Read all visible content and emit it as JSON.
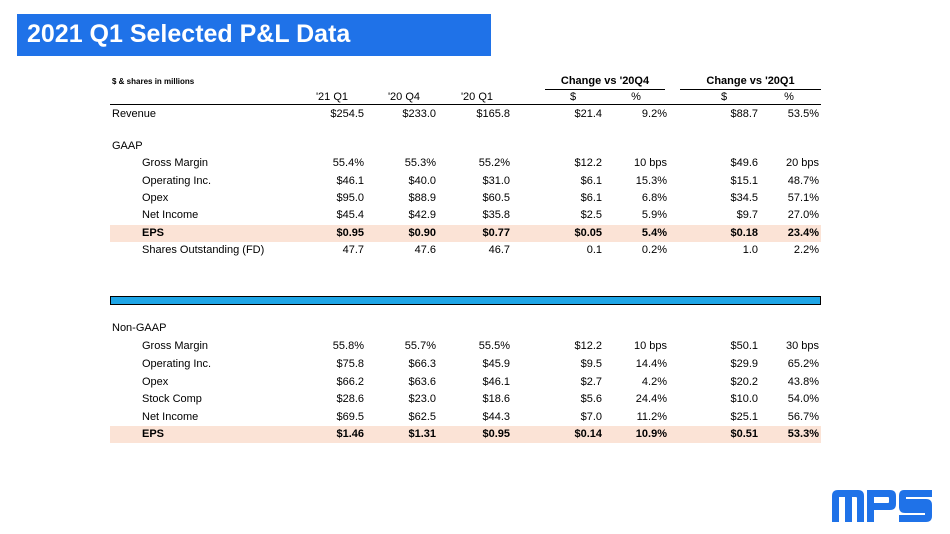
{
  "title": "2021 Q1 Selected P&L Data",
  "units_note": "$ & shares in millions",
  "group_headers": {
    "vs_q4": "Change vs '20Q4",
    "vs_q1": "Change vs '20Q1"
  },
  "columns": [
    "'21 Q1",
    "'20 Q4",
    "'20 Q1",
    "$",
    "%",
    "$",
    "%"
  ],
  "revenue": {
    "label": "Revenue",
    "values": [
      "$254.5",
      "$233.0",
      "$165.8",
      "$21.4",
      "9.2%",
      "$88.7",
      "53.5%"
    ]
  },
  "gaap": {
    "label": "GAAP",
    "rows": [
      {
        "label": "Gross Margin",
        "values": [
          "55.4%",
          "55.3%",
          "55.2%",
          "$12.2",
          "10 bps",
          "$49.6",
          "20 bps"
        ]
      },
      {
        "label": "Operating Inc.",
        "values": [
          "$46.1",
          "$40.0",
          "$31.0",
          "$6.1",
          "15.3%",
          "$15.1",
          "48.7%"
        ]
      },
      {
        "label": "Opex",
        "values": [
          "$95.0",
          "$88.9",
          "$60.5",
          "$6.1",
          "6.8%",
          "$34.5",
          "57.1%"
        ]
      },
      {
        "label": "Net Income",
        "values": [
          "$45.4",
          "$42.9",
          "$35.8",
          "$2.5",
          "5.9%",
          "$9.7",
          "27.0%"
        ]
      },
      {
        "label": "EPS",
        "values": [
          "$0.95",
          "$0.90",
          "$0.77",
          "$0.05",
          "5.4%",
          "$0.18",
          "23.4%"
        ]
      },
      {
        "label": "Shares Outstanding (FD)",
        "values": [
          "47.7",
          "47.6",
          "46.7",
          "0.1",
          "0.2%",
          "1.0",
          "2.2%"
        ]
      }
    ]
  },
  "nongaap": {
    "label": "Non-GAAP",
    "rows": [
      {
        "label": "Gross Margin",
        "values": [
          "55.8%",
          "55.7%",
          "55.5%",
          "$12.2",
          "10 bps",
          "$50.1",
          "30 bps"
        ]
      },
      {
        "label": "Operating Inc.",
        "values": [
          "$75.8",
          "$66.3",
          "$45.9",
          "$9.5",
          "14.4%",
          "$29.9",
          "65.2%"
        ]
      },
      {
        "label": "Opex",
        "values": [
          "$66.2",
          "$63.6",
          "$46.1",
          "$2.7",
          "4.2%",
          "$20.2",
          "43.8%"
        ]
      },
      {
        "label": "Stock Comp",
        "values": [
          "$28.6",
          "$23.0",
          "$18.6",
          "$5.6",
          "24.4%",
          "$10.0",
          "54.0%"
        ]
      },
      {
        "label": "Net Income",
        "values": [
          "$69.5",
          "$62.5",
          "$44.3",
          "$7.0",
          "11.2%",
          "$25.1",
          "56.7%"
        ]
      },
      {
        "label": "EPS",
        "values": [
          "$1.46",
          "$1.31",
          "$0.95",
          "$0.14",
          "10.9%",
          "$0.51",
          "53.3%"
        ]
      }
    ]
  },
  "logo": {
    "text": "MPS",
    "color": "#1f72e8"
  },
  "colors": {
    "title_bg": "#1f72e8",
    "highlight": "#fbe3d6",
    "divider": "#1ea5e6"
  }
}
